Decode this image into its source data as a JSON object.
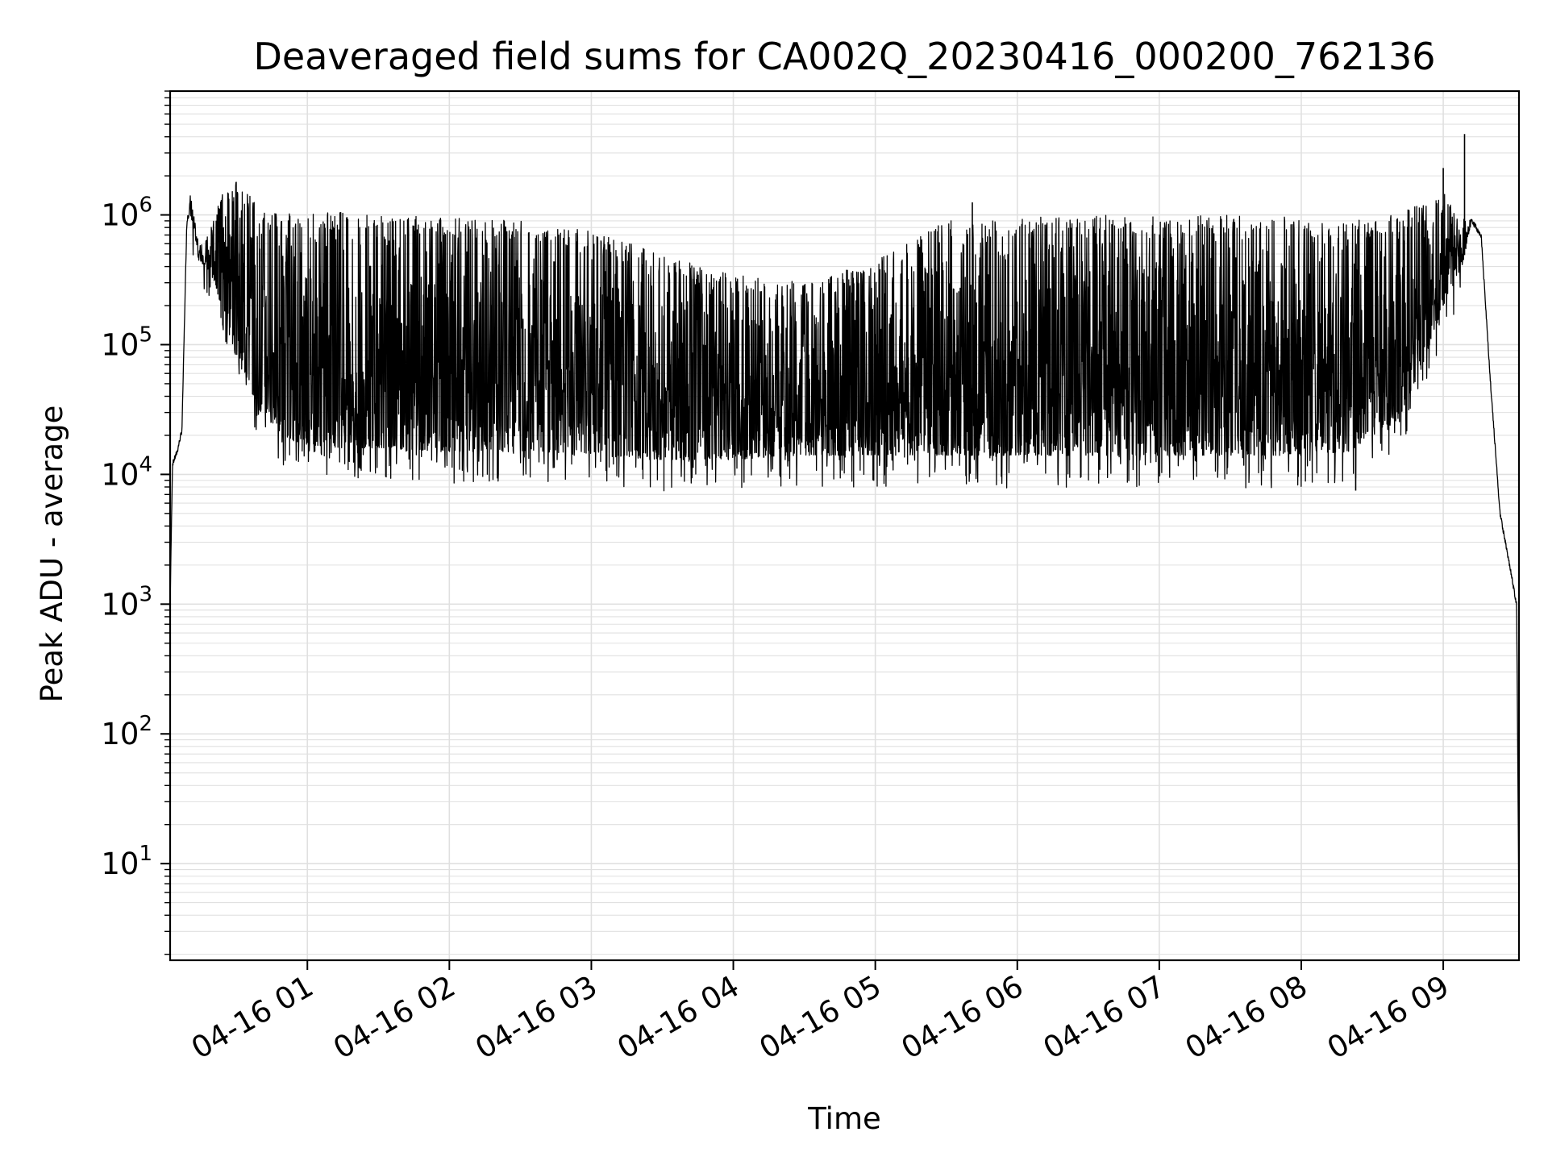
{
  "chart_data": {
    "type": "line",
    "title": "Deaveraged field sums for CA002Q_20230416_000200_762136",
    "xlabel": "Time",
    "ylabel": "Peak ADU - average",
    "y_scale": "log",
    "x_range": [
      "2023-04-16 00:02",
      "2023-04-16 09:32"
    ],
    "ylim": [
      1.8,
      9000000
    ],
    "grid": true,
    "line_color": "#000000",
    "grid_color": "#e0e0e0",
    "x_ticks": [
      {
        "value": "2023-04-16 01:00",
        "label": "04-16 01"
      },
      {
        "value": "2023-04-16 02:00",
        "label": "04-16 02"
      },
      {
        "value": "2023-04-16 03:00",
        "label": "04-16 03"
      },
      {
        "value": "2023-04-16 04:00",
        "label": "04-16 04"
      },
      {
        "value": "2023-04-16 05:00",
        "label": "04-16 05"
      },
      {
        "value": "2023-04-16 06:00",
        "label": "04-16 06"
      },
      {
        "value": "2023-04-16 07:00",
        "label": "04-16 07"
      },
      {
        "value": "2023-04-16 08:00",
        "label": "04-16 08"
      },
      {
        "value": "2023-04-16 09:00",
        "label": "04-16 09"
      }
    ],
    "y_ticks": [
      {
        "value": 10,
        "base": "10",
        "exp": "1"
      },
      {
        "value": 100,
        "base": "10",
        "exp": "2"
      },
      {
        "value": 1000,
        "base": "10",
        "exp": "3"
      },
      {
        "value": 10000,
        "base": "10",
        "exp": "4"
      },
      {
        "value": 100000,
        "base": "10",
        "exp": "5"
      },
      {
        "value": 1000000,
        "base": "10",
        "exp": "6"
      }
    ],
    "series": [
      {
        "time": [
          "2023-04-16 00:02",
          "2023-04-16 00:03",
          "2023-04-16 00:05",
          "2023-04-16 00:07",
          "2023-04-16 00:09",
          "2023-04-16 00:10",
          "2023-04-16 00:12",
          "2023-04-16 00:14",
          "2023-04-16 00:17",
          "2023-04-16 00:21",
          "2023-04-16 00:25",
          "2023-04-16 00:30",
          "2023-04-16 00:35",
          "2023-04-16 00:40",
          "2023-04-16 00:45",
          "2023-04-16 00:50",
          "2023-04-16 00:55",
          "2023-04-16 01:00",
          "2023-04-16 01:15",
          "2023-04-16 01:30",
          "2023-04-16 02:00",
          "2023-04-16 02:30",
          "2023-04-16 03:00",
          "2023-04-16 03:30",
          "2023-04-16 04:00",
          "2023-04-16 04:30",
          "2023-04-16 05:00",
          "2023-04-16 05:30",
          "2023-04-16 06:00",
          "2023-04-16 06:30",
          "2023-04-16 07:00",
          "2023-04-16 07:30",
          "2023-04-16 08:00",
          "2023-04-16 08:20",
          "2023-04-16 08:40",
          "2023-04-16 08:50",
          "2023-04-16 09:00",
          "2023-04-16 09:08",
          "2023-04-16 09:12",
          "2023-04-16 09:16",
          "2023-04-16 09:20",
          "2023-04-16 09:24",
          "2023-04-16 09:28",
          "2023-04-16 09:31",
          "2023-04-16 09:32"
        ],
        "upper": [
          1000,
          12000,
          15000,
          22000,
          800000,
          1700000,
          1000000,
          600000,
          650000,
          1000000,
          1700000,
          1800000,
          1500000,
          1200000,
          1100000,
          1100000,
          1100000,
          1050000,
          1050000,
          1000000,
          950000,
          900000,
          750000,
          500000,
          350000,
          300000,
          450000,
          900000,
          950000,
          1000000,
          1000000,
          1000000,
          950000,
          900000,
          1000000,
          1200000,
          1500000,
          1000000,
          900000,
          700000,
          50000,
          5000,
          2000,
          1000,
          3.8
        ],
        "lower": [
          1000,
          12000,
          15000,
          22000,
          800000,
          1000000,
          800000,
          450000,
          400000,
          300000,
          150000,
          80000,
          50000,
          30000,
          25000,
          20000,
          18000,
          17000,
          16000,
          16000,
          15000,
          15000,
          14000,
          13000,
          13000,
          14000,
          14000,
          14000,
          14000,
          14000,
          14000,
          14000,
          14000,
          15000,
          25000,
          60000,
          200000,
          400000,
          900000,
          700000,
          50000,
          5000,
          2000,
          1000,
          3.8
        ]
      }
    ],
    "notable_spikes": [
      {
        "time": "2023-04-16 09:09",
        "value": 4200000
      },
      {
        "time": "2023-04-16 09:00",
        "value": 2300000
      },
      {
        "time": "2023-04-16 05:41",
        "value": 1250000
      },
      {
        "time": "2023-04-16 08:23",
        "value": 7500
      }
    ]
  }
}
